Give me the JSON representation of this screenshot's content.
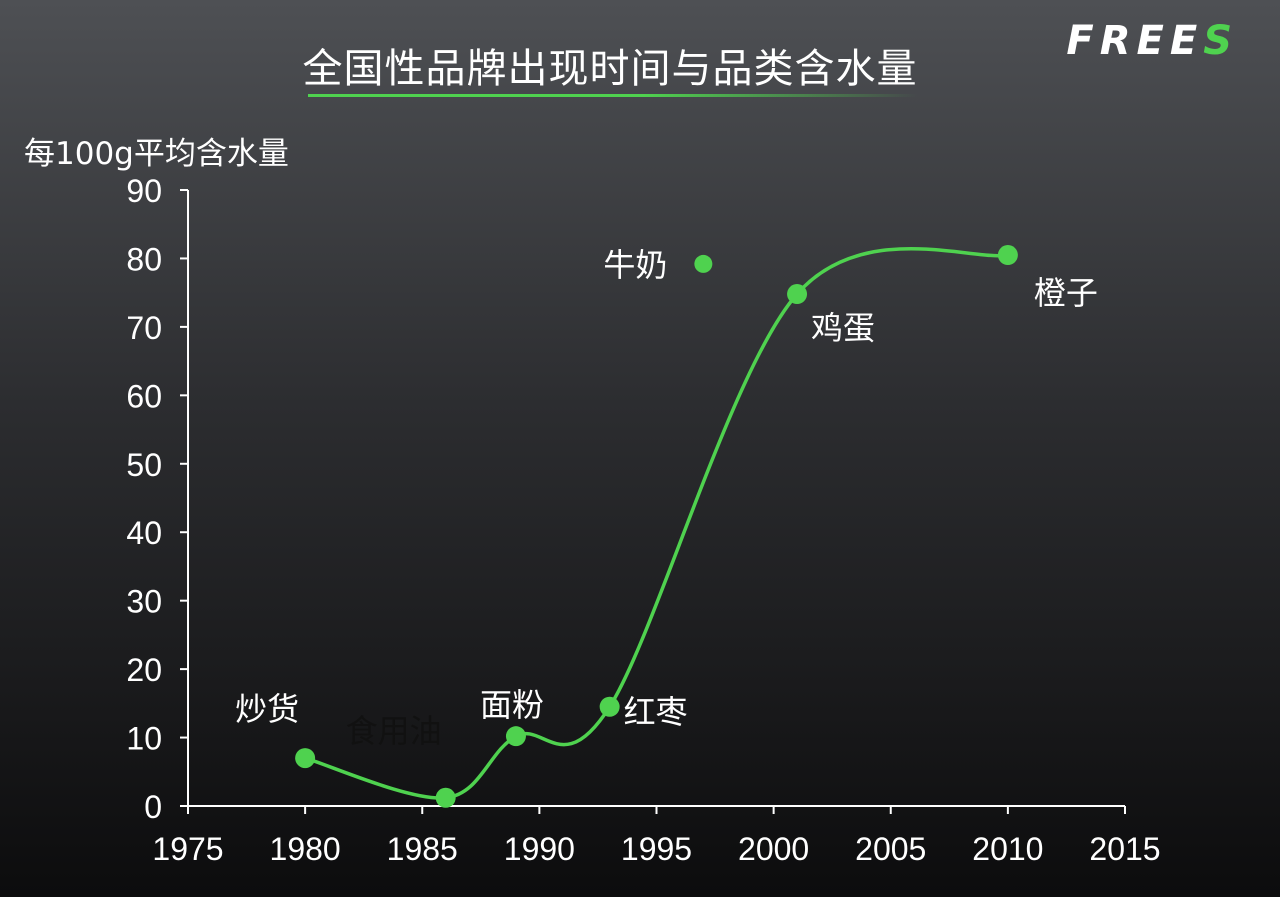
{
  "title": "全国性品牌出现时间与品类含水量",
  "logo": {
    "text": "FREE",
    "accent_text": "S"
  },
  "colors": {
    "accent": "#4fd24f",
    "axis": "#ffffff",
    "text": "#ffffff"
  },
  "chart_data": {
    "type": "line",
    "title": "全国性品牌出现时间与品类含水量",
    "ylabel": "每100g平均含水量",
    "xlabel": "",
    "xlim": [
      1975,
      2015
    ],
    "ylim": [
      0,
      90
    ],
    "x_ticks": [
      "1975",
      "1980",
      "1985",
      "1990",
      "1995",
      "2000",
      "2005",
      "2010",
      "2015"
    ],
    "y_ticks": [
      "0",
      "10",
      "20",
      "30",
      "40",
      "50",
      "60",
      "70",
      "80",
      "90"
    ],
    "grid": false,
    "series": [
      {
        "points": [
          {
            "label": "炒货",
            "x": 1980,
            "y": 7
          },
          {
            "label": "食用油",
            "x": 1986,
            "y": 1.2
          },
          {
            "label": "面粉",
            "x": 1989,
            "y": 10.2
          },
          {
            "label": "红枣",
            "x": 1993,
            "y": 14.5
          },
          {
            "label": "鸡蛋",
            "x": 2001,
            "y": 74.8
          },
          {
            "label": "橙子",
            "x": 2010,
            "y": 80.5
          }
        ]
      }
    ],
    "extra_points": [
      {
        "label": "牛奶",
        "x": 1997,
        "y": 79.2
      }
    ]
  }
}
